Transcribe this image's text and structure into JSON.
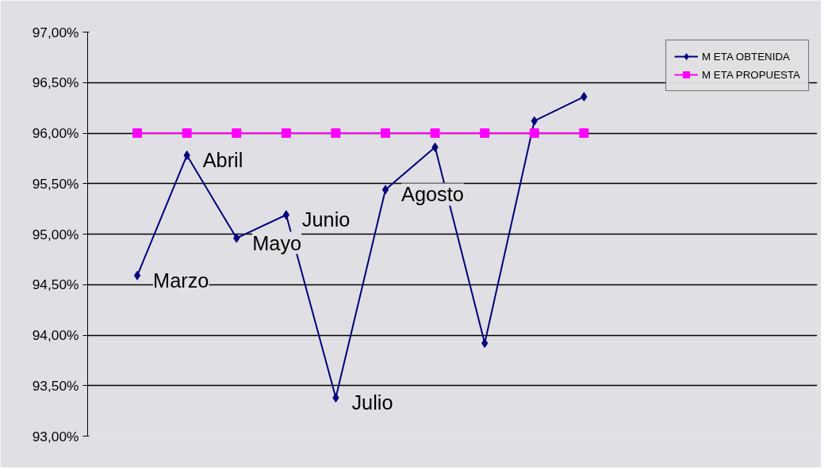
{
  "chart_data": {
    "type": "line",
    "categories": [
      null,
      null,
      null,
      null,
      null,
      null,
      null,
      null,
      null,
      null
    ],
    "series": [
      {
        "name": "M ETA OBTENIDA",
        "color": "#000080",
        "marker": "diamond",
        "values": [
          94.59,
          95.78,
          94.96,
          95.19,
          93.38,
          95.44,
          95.86,
          93.92,
          96.12,
          96.36
        ],
        "value_labels": [
          "Marzo",
          "Abril",
          "Mayo",
          "Junio",
          "Julio",
          "Agosto",
          null,
          null,
          null,
          null
        ]
      },
      {
        "name": "M ETA PROPUESTA",
        "color": "#ff00ff",
        "marker": "square",
        "values": [
          96,
          96,
          96,
          96,
          96,
          96,
          96,
          96,
          96,
          96
        ]
      }
    ],
    "ylim": [
      93,
      97
    ],
    "yticks": [
      {
        "value": 93,
        "label": "93,00%"
      },
      {
        "value": 93.5,
        "label": "93,50%"
      },
      {
        "value": 94,
        "label": "94,00%"
      },
      {
        "value": 94.5,
        "label": "94,50%"
      },
      {
        "value": 95,
        "label": "95,00%"
      },
      {
        "value": 95.5,
        "label": "95,50%"
      },
      {
        "value": 96,
        "label": "96,00%"
      },
      {
        "value": 96.5,
        "label": "96,50%"
      },
      {
        "value": 97,
        "label": "97,00%"
      }
    ],
    "grid": "y",
    "legend": "top right",
    "line_style": "solid"
  }
}
